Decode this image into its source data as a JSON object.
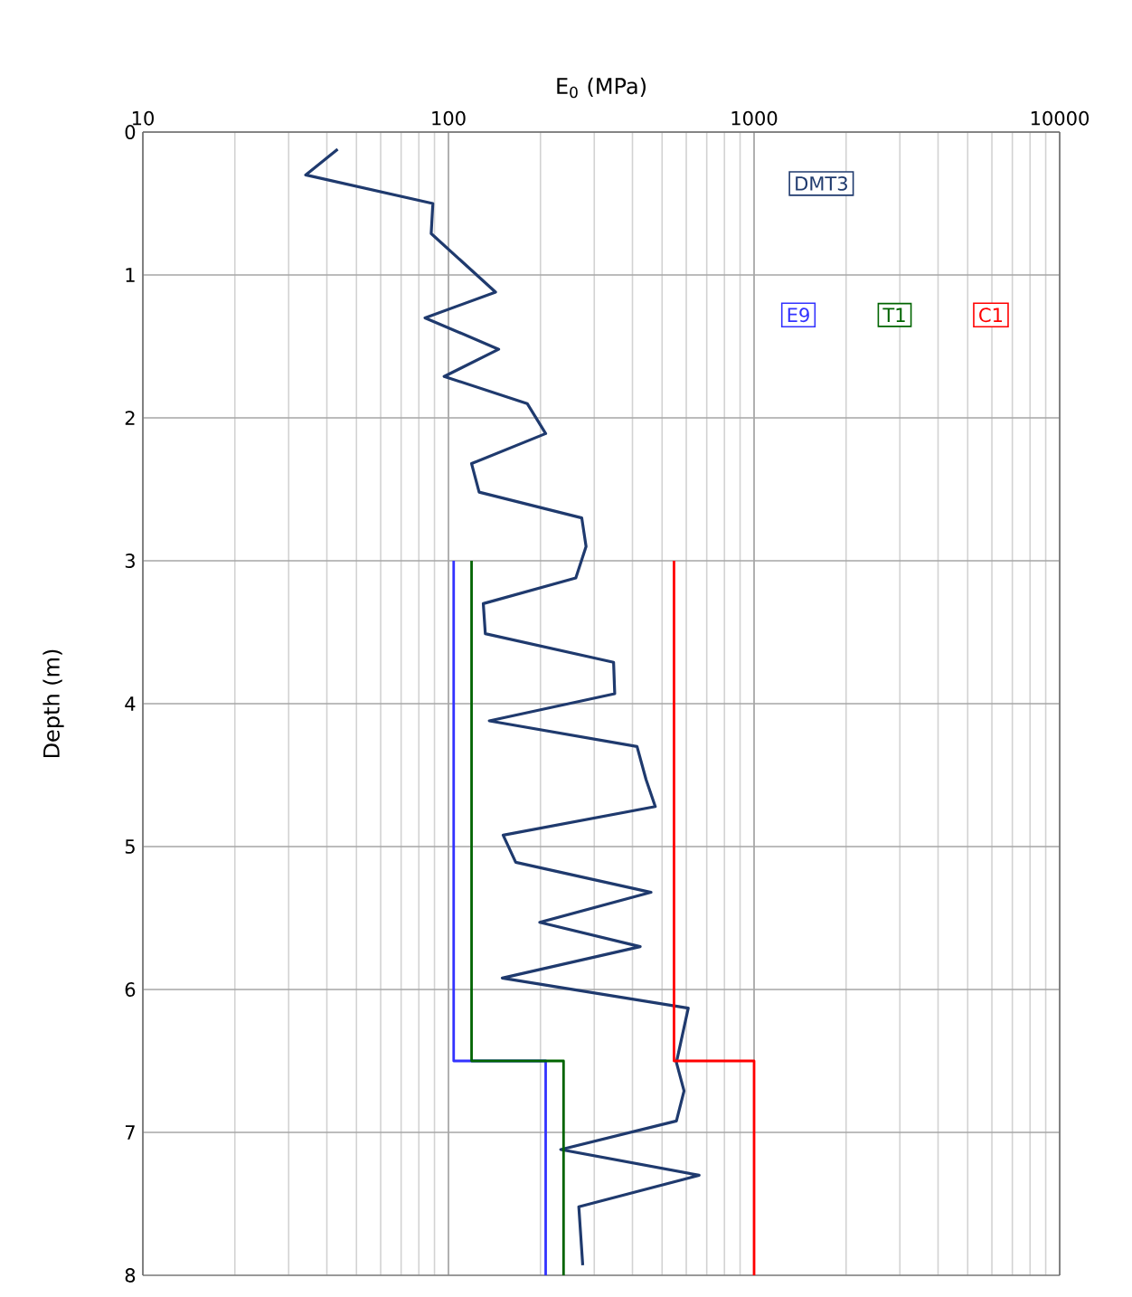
{
  "chart_data": {
    "type": "line",
    "xlabel": "E$_{0}$  (MPa)",
    "ylabel": "Depth  (m)",
    "log": "x",
    "xlim": [
      10,
      10000
    ],
    "xticks": [
      10,
      100,
      1000,
      10000
    ],
    "ylim": [
      8,
      0
    ],
    "yticks": [
      0,
      1,
      2,
      3,
      4,
      5,
      6,
      7,
      8
    ],
    "grid": true,
    "legend": "top right",
    "marker": "none",
    "line_style": "solid",
    "series": [
      {
        "name": "DMT3",
        "color": "#1f3a6e",
        "x": [
          43.4,
          34.1,
          88.9,
          87.8,
          142.6,
          83.8,
          146,
          96.8,
          181,
          208,
          119,
          126,
          273,
          282,
          261,
          130,
          132,
          347,
          350,
          136,
          414,
          443,
          475,
          151,
          166,
          460,
          199,
          424,
          150,
          609,
          557,
          590,
          557,
          233,
          661,
          267,
          275
        ],
        "values": [
          0.12,
          0.3,
          0.5,
          0.71,
          1.12,
          1.3,
          1.52,
          1.71,
          1.9,
          2.11,
          2.32,
          2.52,
          2.7,
          2.9,
          3.12,
          3.3,
          3.51,
          3.71,
          3.93,
          4.12,
          4.3,
          4.53,
          4.72,
          4.92,
          5.11,
          5.32,
          5.53,
          5.7,
          5.92,
          6.13,
          6.51,
          6.71,
          6.92,
          7.12,
          7.3,
          7.52,
          7.93
        ]
      },
      {
        "name": "E9",
        "color": "#3333ff",
        "x": [
          104,
          104,
          208,
          208
        ],
        "values": [
          3,
          6.5,
          6.5,
          8
        ]
      },
      {
        "name": "T1",
        "color": "#006400",
        "x": [
          119,
          119,
          238,
          238
        ],
        "values": [
          3,
          6.5,
          6.5,
          8
        ]
      },
      {
        "name": "C1",
        "color": "#ff0000",
        "x": [
          547,
          547,
          1000,
          1000
        ],
        "values": [
          3,
          6.5,
          6.5,
          8
        ]
      }
    ]
  }
}
